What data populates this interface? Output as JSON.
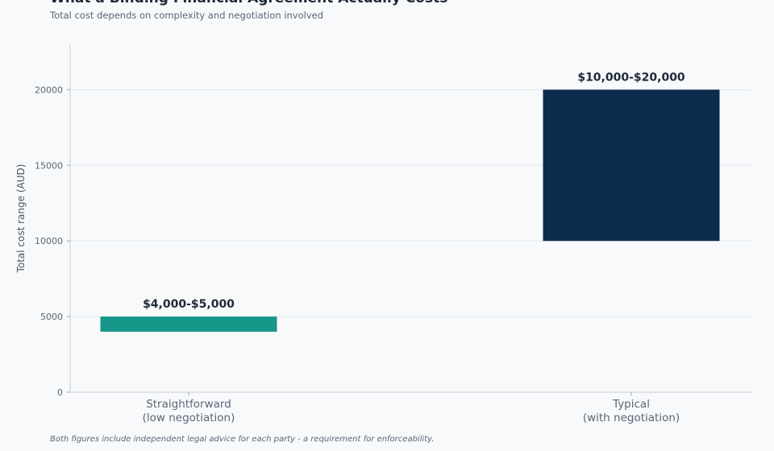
{
  "chart_data": {
    "type": "bar",
    "title": "What a Binding Financial Agreement Actually Costs",
    "subtitle": "Total cost depends on complexity and negotiation involved",
    "ylabel": "Total cost range (AUD)",
    "xlabel": "",
    "ylim": [
      0,
      23000
    ],
    "yticks": [
      0,
      5000,
      10000,
      15000,
      20000
    ],
    "grid": true,
    "categories": [
      [
        "Straightforward",
        "(low negotiation)"
      ],
      [
        "Typical",
        "(with negotiation)"
      ]
    ],
    "ranges": [
      {
        "low": 4000,
        "high": 5000,
        "label": "$4,000-$5,000",
        "color": "#17968a"
      },
      {
        "low": 10000,
        "high": 20000,
        "label": "$10,000-$20,000",
        "color": "#0d2d4f"
      }
    ]
  },
  "footnote": "Both figures include independent legal advice for each party - a requirement for enforceability."
}
